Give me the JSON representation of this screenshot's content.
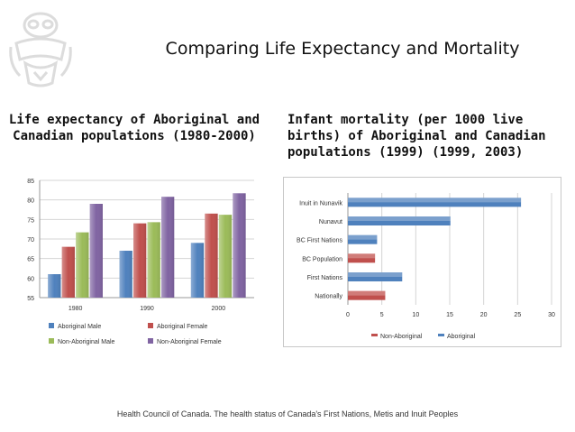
{
  "slide": {
    "title": "Comparing Life Expectancy and Mortality",
    "left_heading": "Life expectancy of Aboriginal and Canadian populations (1980-2000)",
    "right_heading": "Infant mortality (per 1000 live births) of Aboriginal and Canadian populations (1999) (1999, 2003)",
    "footer": "Health Council of Canada. The health status of Canada's First Nations, Metis and Inuit Peoples"
  },
  "chart_data": [
    {
      "type": "bar",
      "orientation": "vertical",
      "title": "Life expectancy of Aboriginal and Canadian populations (1980-2000)",
      "categories": [
        "1980",
        "1990",
        "2000"
      ],
      "ylim": [
        55,
        85
      ],
      "yticks": [
        55,
        60,
        65,
        70,
        75,
        80,
        85
      ],
      "grid": true,
      "legend": "bottom",
      "series": [
        {
          "name": "Aboriginal Male",
          "color": "#4f81bd",
          "values": [
            61,
            67,
            69
          ]
        },
        {
          "name": "Aboriginal Female",
          "color": "#c0504d",
          "values": [
            68,
            74,
            76.5
          ]
        },
        {
          "name": "Non-Aboriginal Male",
          "color": "#9bbb59",
          "values": [
            71.7,
            74.3,
            76.2
          ]
        },
        {
          "name": "Non-Aboriginal Female",
          "color": "#8064a2",
          "values": [
            79,
            80.8,
            81.7
          ]
        }
      ]
    },
    {
      "type": "bar",
      "orientation": "horizontal",
      "title": "Infant mortality (per 1000 live births) of Aboriginal and Canadian populations",
      "categories": [
        "Inuit in Nunavik",
        "Nunavut",
        "BC First Nations",
        "BC Population",
        "First Nations",
        "Nationally"
      ],
      "xlim": [
        0,
        30
      ],
      "xticks": [
        0,
        5,
        10,
        15,
        20,
        25,
        30
      ],
      "grid": true,
      "legend": "bottom",
      "series": [
        {
          "name": "Non-Aboriginal",
          "color": "#c0504d",
          "values": [
            null,
            null,
            null,
            4,
            null,
            5.5
          ]
        },
        {
          "name": "Aboriginal",
          "color": "#4f81bd",
          "values": [
            25.5,
            15.1,
            4.3,
            null,
            8,
            null
          ]
        }
      ]
    }
  ]
}
